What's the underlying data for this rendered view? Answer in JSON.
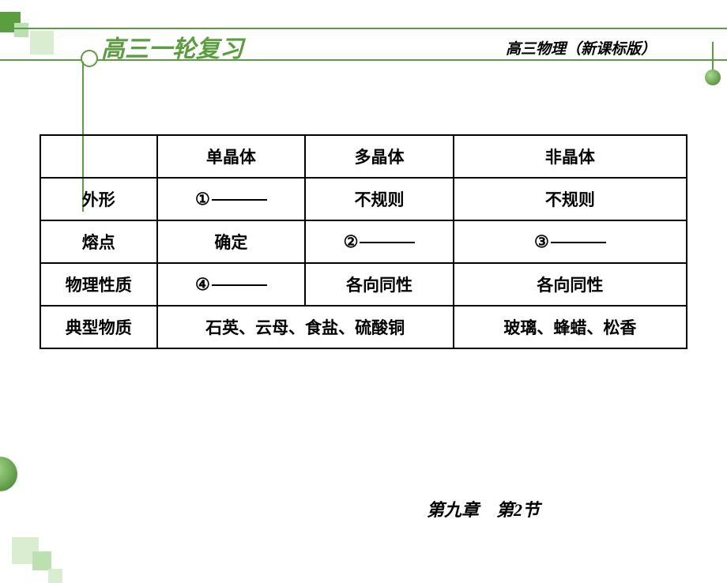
{
  "header": {
    "title": "高三一轮复习",
    "subtitle": "高三物理（新课标版）"
  },
  "footer": {
    "text": "第九章　第2节"
  },
  "table": {
    "type": "table",
    "border_color": "#000000",
    "header_row": [
      "",
      "单晶体",
      "多晶体",
      "非晶体"
    ],
    "rows": [
      {
        "label": "外形",
        "c1_prefix": "①",
        "c1_blank": true,
        "c2": "不规则",
        "c3": "不规则"
      },
      {
        "label": "熔点",
        "c1": "确定",
        "c2_prefix": "②",
        "c2_blank": true,
        "c3_prefix": "③",
        "c3_blank": true
      },
      {
        "label": "物理性质",
        "c1_prefix": "④",
        "c1_blank": true,
        "c2": "各向同性",
        "c3": "各向同性"
      },
      {
        "label": "典型物质",
        "c12_merged": "石英、云母、食盐、硫酸铜",
        "c3": "玻璃、蜂蜡、松香"
      }
    ]
  },
  "colors": {
    "theme_green": "#5a9e3f",
    "light_green_1": "#bde0b0",
    "light_green_2": "#d9eed1",
    "background": "#ffffff"
  }
}
